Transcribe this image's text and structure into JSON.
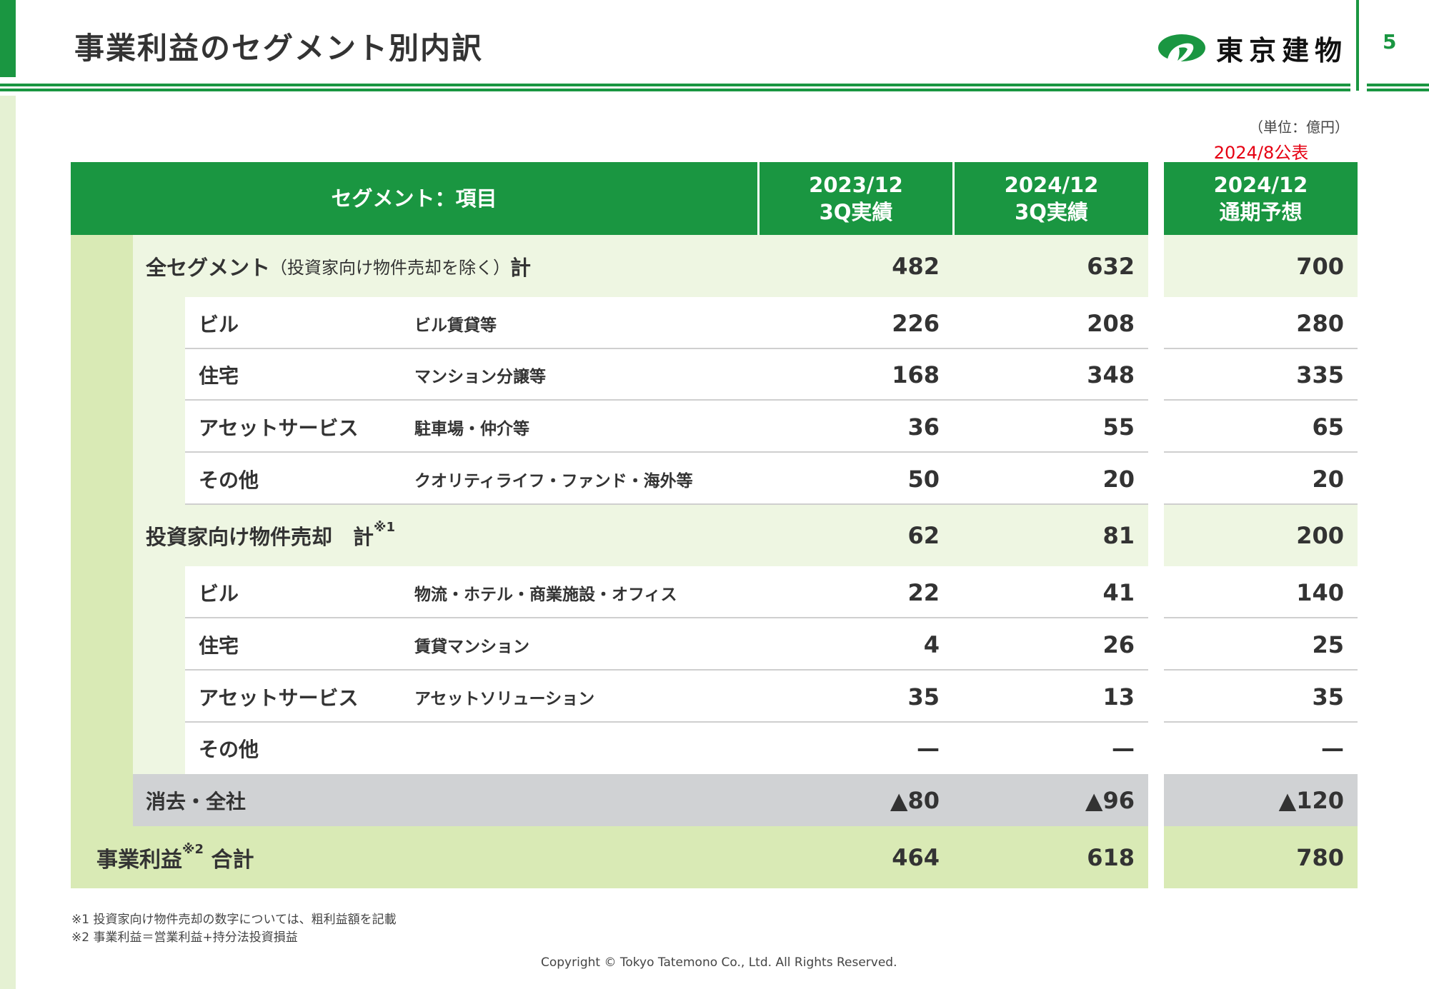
{
  "header": {
    "title": "事業利益のセグメント別内訳",
    "company": "東京建物",
    "page": "5"
  },
  "unit": "（単位：億円）",
  "published": "2024/8公表",
  "colors": {
    "brand": "#1a9641",
    "total": "#d9eab5",
    "section": "#eef6e2",
    "gray": "#d0d2d4",
    "red": "#e60012"
  },
  "table": {
    "headers": [
      "セグメント：項目",
      "2023/12\n3Q実績",
      "2024/12\n3Q実績",
      "2024/12\n通期予想"
    ],
    "rows": [
      {
        "type": "section",
        "label": "全セグメント",
        "sub": "（投資家向け物件売却を除く）",
        "suffix": "計",
        "values": [
          "482",
          "632",
          "700"
        ]
      },
      {
        "type": "sub",
        "label": "ビル",
        "desc": "ビル賃貸等",
        "values": [
          "226",
          "208",
          "280"
        ]
      },
      {
        "type": "sub",
        "label": "住宅",
        "desc": "マンション分譲等",
        "values": [
          "168",
          "348",
          "335"
        ]
      },
      {
        "type": "sub",
        "label": "アセットサービス",
        "desc": "駐車場・仲介等",
        "values": [
          "36",
          "55",
          "65"
        ]
      },
      {
        "type": "sub",
        "label": "その他",
        "desc": "クオリティライフ・ファンド・海外等",
        "values": [
          "50",
          "20",
          "20"
        ]
      },
      {
        "type": "section",
        "label": "投資家向け物件売却　計",
        "sup": "※1",
        "values": [
          "62",
          "81",
          "200"
        ]
      },
      {
        "type": "sub",
        "label": "ビル",
        "desc": "物流・ホテル・商業施設・オフィス",
        "values": [
          "22",
          "41",
          "140"
        ]
      },
      {
        "type": "sub",
        "label": "住宅",
        "desc": "賃貸マンション",
        "values": [
          "4",
          "26",
          "25"
        ]
      },
      {
        "type": "sub",
        "label": "アセットサービス",
        "desc": "アセットソリューション",
        "values": [
          "35",
          "13",
          "35"
        ]
      },
      {
        "type": "sub",
        "label": "その他",
        "desc": "",
        "values": [
          "—",
          "—",
          "—"
        ]
      },
      {
        "type": "gray",
        "label": "消去・全社",
        "values": [
          "▲80",
          "▲96",
          "▲120"
        ]
      },
      {
        "type": "total",
        "label": "事業利益",
        "sup": "※2",
        "suffix": " 合計",
        "values": [
          "464",
          "618",
          "780"
        ]
      }
    ]
  },
  "footnotes": [
    "※1 投資家向け物件売却の数字については、粗利益額を記載",
    "※2 事業利益＝営業利益+持分法投資損益"
  ],
  "copyright": "Copyright © Tokyo Tatemono Co., Ltd. All Rights Reserved."
}
